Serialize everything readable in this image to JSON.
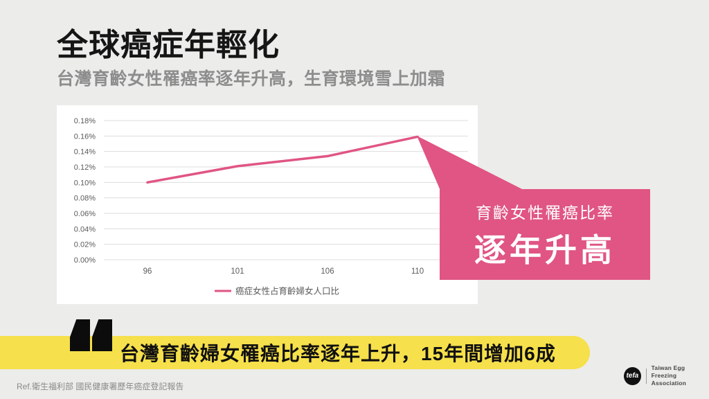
{
  "slide": {
    "title": "全球癌症年輕化",
    "subtitle": "台灣育齡女性罹癌率逐年升高，生育環境雪上加霜",
    "quote": "台灣育齡婦女罹癌比率逐年上升，15年間增加6成",
    "reference": "Ref.衛生福利部 國民健康署歷年癌症登記報告"
  },
  "callout": {
    "line1": "育齡女性罹癌比率",
    "line2": "逐年升高"
  },
  "logo": {
    "monogram": "tefa",
    "org_line1": "Taiwan Egg Freezing",
    "org_line2": "Association"
  },
  "colors": {
    "accent_pink": "#e05583",
    "accent_yellow": "#f6e04b",
    "background": "#ececea",
    "axis_text": "#595959",
    "gridline": "#dddddd"
  },
  "chart_data": {
    "type": "line",
    "x": [
      96,
      101,
      106,
      110
    ],
    "series": [
      {
        "name": "癌症女性占育齡婦女人口比",
        "values": [
          0.1,
          0.121,
          0.134,
          0.159
        ]
      }
    ],
    "unit": "%",
    "title": "",
    "xlabel": "",
    "ylabel": "",
    "ylim": [
      0,
      0.18
    ],
    "ytick_step": 0.02,
    "grid": true,
    "legend_position": "bottom"
  }
}
